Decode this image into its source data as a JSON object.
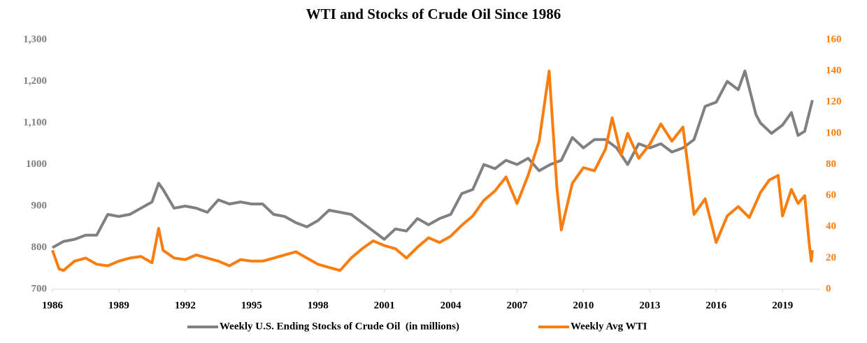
{
  "chart_data": {
    "type": "line",
    "title": "WTI and Stocks of Crude Oil Since 1986",
    "xlim": [
      1986,
      2020.7
    ],
    "xticks": [
      1986,
      1989,
      1992,
      1995,
      1998,
      2001,
      2004,
      2007,
      2010,
      2013,
      2016,
      2019
    ],
    "ylim": [
      700,
      1300
    ],
    "yticks": [
      700,
      800,
      900,
      1000,
      {
        "value": 1100,
        "label": "1,100"
      },
      {
        "value": 1200,
        "label": "1,200"
      },
      {
        "value": 1300,
        "label": "1,300"
      }
    ],
    "y2lim": [
      0,
      160
    ],
    "y2ticks": [
      0,
      20,
      40,
      60,
      80,
      100,
      120,
      140,
      160
    ],
    "legend": "bottom",
    "series": [
      {
        "name": "Weekly U.S. Ending Stocks of Crude Oil  (in millions)",
        "color": "#808080",
        "x": [
          1986,
          1986.5,
          1987,
          1987.5,
          1988,
          1988.5,
          1989,
          1989.5,
          1990,
          1990.5,
          1990.8,
          1991,
          1991.5,
          1992,
          1992.5,
          1993,
          1993.5,
          1994,
          1994.5,
          1995,
          1995.5,
          1996,
          1996.5,
          1997,
          1997.5,
          1998,
          1998.5,
          1999,
          1999.5,
          2000,
          2000.5,
          2001,
          2001.5,
          2002,
          2002.5,
          2003,
          2003.5,
          2004,
          2004.5,
          2005,
          2005.5,
          2006,
          2006.5,
          2007,
          2007.5,
          2008,
          2008.5,
          2009,
          2009.5,
          2010,
          2010.5,
          2011,
          2011.5,
          2012,
          2012.5,
          2013,
          2013.5,
          2014,
          2014.5,
          2015,
          2015.5,
          2016,
          2016.5,
          2017,
          2017.3,
          2017.8,
          2018,
          2018.5,
          2019,
          2019.4,
          2019.7,
          2020,
          2020.35
        ],
        "values": [
          800,
          815,
          820,
          830,
          830,
          880,
          875,
          880,
          895,
          910,
          955,
          940,
          895,
          900,
          895,
          885,
          915,
          905,
          910,
          905,
          905,
          880,
          875,
          860,
          850,
          865,
          890,
          885,
          880,
          860,
          840,
          820,
          845,
          840,
          870,
          855,
          870,
          880,
          930,
          940,
          1000,
          990,
          1010,
          1000,
          1015,
          985,
          1000,
          1010,
          1065,
          1040,
          1060,
          1060,
          1040,
          1000,
          1050,
          1040,
          1050,
          1030,
          1040,
          1060,
          1140,
          1150,
          1200,
          1180,
          1225,
          1120,
          1100,
          1075,
          1095,
          1125,
          1070,
          1080,
          1155
        ]
      },
      {
        "name": "Weekly Avg WTI",
        "color": "#fa7d0f",
        "axis": "y2",
        "x": [
          1986,
          1986.3,
          1986.5,
          1987,
          1987.5,
          1988,
          1988.5,
          1989,
          1989.5,
          1990,
          1990.5,
          1990.8,
          1991,
          1991.5,
          1992,
          1992.5,
          1993,
          1993.5,
          1994,
          1994.5,
          1995,
          1995.5,
          1996,
          1996.5,
          1997,
          1997.5,
          1998,
          1998.5,
          1999,
          1999.5,
          2000,
          2000.5,
          2001,
          2001.5,
          2002,
          2002.5,
          2003,
          2003.5,
          2004,
          2004.5,
          2005,
          2005.5,
          2006,
          2006.5,
          2007,
          2007.5,
          2008,
          2008.45,
          2008.8,
          2009,
          2009.5,
          2010,
          2010.5,
          2011,
          2011.3,
          2011.7,
          2012,
          2012.5,
          2013,
          2013.5,
          2014,
          2014.5,
          2015,
          2015.5,
          2016,
          2016.5,
          2017,
          2017.5,
          2018,
          2018.4,
          2018.8,
          2019,
          2019.4,
          2019.7,
          2020,
          2020.2,
          2020.3,
          2020.35
        ],
        "values": [
          25,
          13,
          12,
          18,
          20,
          16,
          15,
          18,
          20,
          21,
          17,
          39,
          25,
          20,
          19,
          22,
          20,
          18,
          15,
          19,
          18,
          18,
          20,
          22,
          24,
          20,
          16,
          14,
          12,
          20,
          26,
          31,
          28,
          26,
          20,
          27,
          33,
          30,
          34,
          41,
          47,
          57,
          63,
          72,
          55,
          73,
          95,
          140,
          65,
          38,
          68,
          78,
          76,
          90,
          110,
          86,
          100,
          84,
          93,
          106,
          95,
          104,
          48,
          58,
          30,
          47,
          53,
          46,
          62,
          70,
          73,
          47,
          64,
          55,
          60,
          30,
          18,
          25
        ]
      }
    ]
  }
}
